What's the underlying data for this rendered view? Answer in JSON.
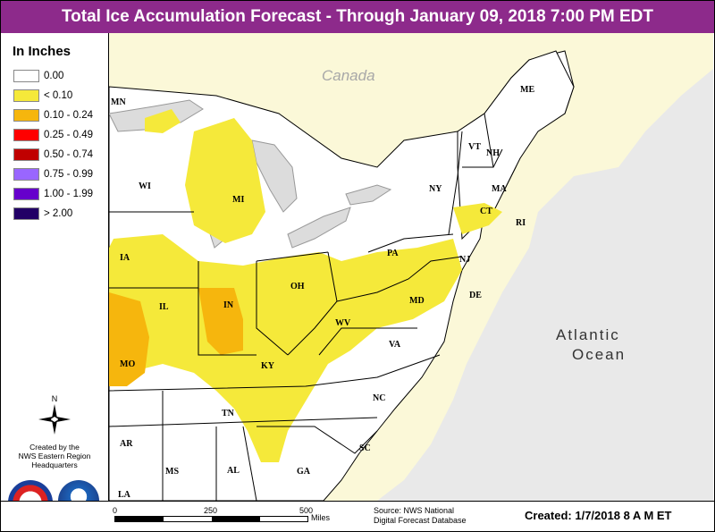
{
  "title": "Total Ice Accumulation Forecast - Through January 09, 2018 7:00 PM EDT",
  "legend": {
    "title": "In Inches",
    "items": [
      {
        "label": "0.00",
        "color": "#ffffff"
      },
      {
        "label": "< 0.10",
        "color": "#f5e93a"
      },
      {
        "label": "0.10 - 0.24",
        "color": "#f6b60d"
      },
      {
        "label": "0.25 - 0.49",
        "color": "#ff0000"
      },
      {
        "label": "0.50 - 0.74",
        "color": "#c00000"
      },
      {
        "label": "0.75 - 0.99",
        "color": "#9966ff"
      },
      {
        "label": "1.00 - 1.99",
        "color": "#6600cc"
      },
      {
        "label": "> 2.00",
        "color": "#220066"
      }
    ]
  },
  "compass": {
    "north": "N"
  },
  "credit": "Created by the\nNWS Eastern Region\nHeadquarters",
  "map": {
    "regions": {
      "canada": "Canada",
      "ocean_1": "Atlantic",
      "ocean_2": "Ocean"
    },
    "states": [
      "MN",
      "WI",
      "MI",
      "IA",
      "IL",
      "IN",
      "OH",
      "MO",
      "KY",
      "WV",
      "PA",
      "NY",
      "VT",
      "NH",
      "ME",
      "MA",
      "CT",
      "RI",
      "NJ",
      "MD",
      "DE",
      "VA",
      "NC",
      "TN",
      "AR",
      "MS",
      "AL",
      "GA",
      "SC",
      "LA"
    ]
  },
  "scale": {
    "ticks": [
      "0",
      "250",
      "500"
    ],
    "units": "Miles"
  },
  "source": "Source: NWS National\nDigital Forecast Database",
  "created": "Created: 1/7/2018 8 A M ET"
}
